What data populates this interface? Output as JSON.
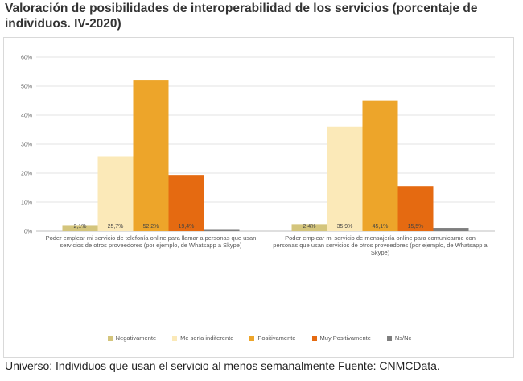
{
  "title": "Valoración de posibilidades de interoperabilidad de los servicios (porcentaje de individuos. IV-2020)",
  "footer": "Universo: Individuos que usan el servicio al menos semanalmente Fuente: CNMCData.",
  "colors": {
    "Negativamente": "#d4c57c",
    "Me sería indiferente": "#fbe9b8",
    "Positivamente": "#eda52a",
    "Muy Positivamente": "#e56a11",
    "Ns/Nc": "#7f7f7f"
  },
  "chart_data": {
    "type": "bar",
    "categories": [
      [
        "Poder emplear mi servicio de telefonía online para llamar a personas que usan",
        "servicios de otros proveedores (por ejemplo, de Whatsapp a Skype)"
      ],
      [
        "Poder emplear mi servicio de mensajería online para comunicarme con",
        "personas que usan servicios de otros proveedores (por ejemplo, de Whatsapp a",
        "Skype)"
      ]
    ],
    "series": [
      {
        "name": "Negativamente",
        "values": [
          2.1,
          2.4
        ],
        "labels": [
          "2,1%",
          "2,4%"
        ]
      },
      {
        "name": "Me sería indiferente",
        "values": [
          25.7,
          35.9
        ],
        "labels": [
          "25,7%",
          "35,9%"
        ]
      },
      {
        "name": "Positivamente",
        "values": [
          52.2,
          45.1
        ],
        "labels": [
          "52,2%",
          "45,1%"
        ]
      },
      {
        "name": "Muy Positivamente",
        "values": [
          19.4,
          15.5
        ],
        "labels": [
          "19,4%",
          "15,5%"
        ]
      },
      {
        "name": "Ns/Nc",
        "values": [
          0.7,
          1.1
        ],
        "labels": [
          "",
          ""
        ]
      }
    ],
    "yticks": [
      "0%",
      "10%",
      "20%",
      "30%",
      "40%",
      "50%",
      "60%"
    ],
    "ylim": [
      0,
      60
    ],
    "grid": true,
    "legend": "bottom"
  }
}
